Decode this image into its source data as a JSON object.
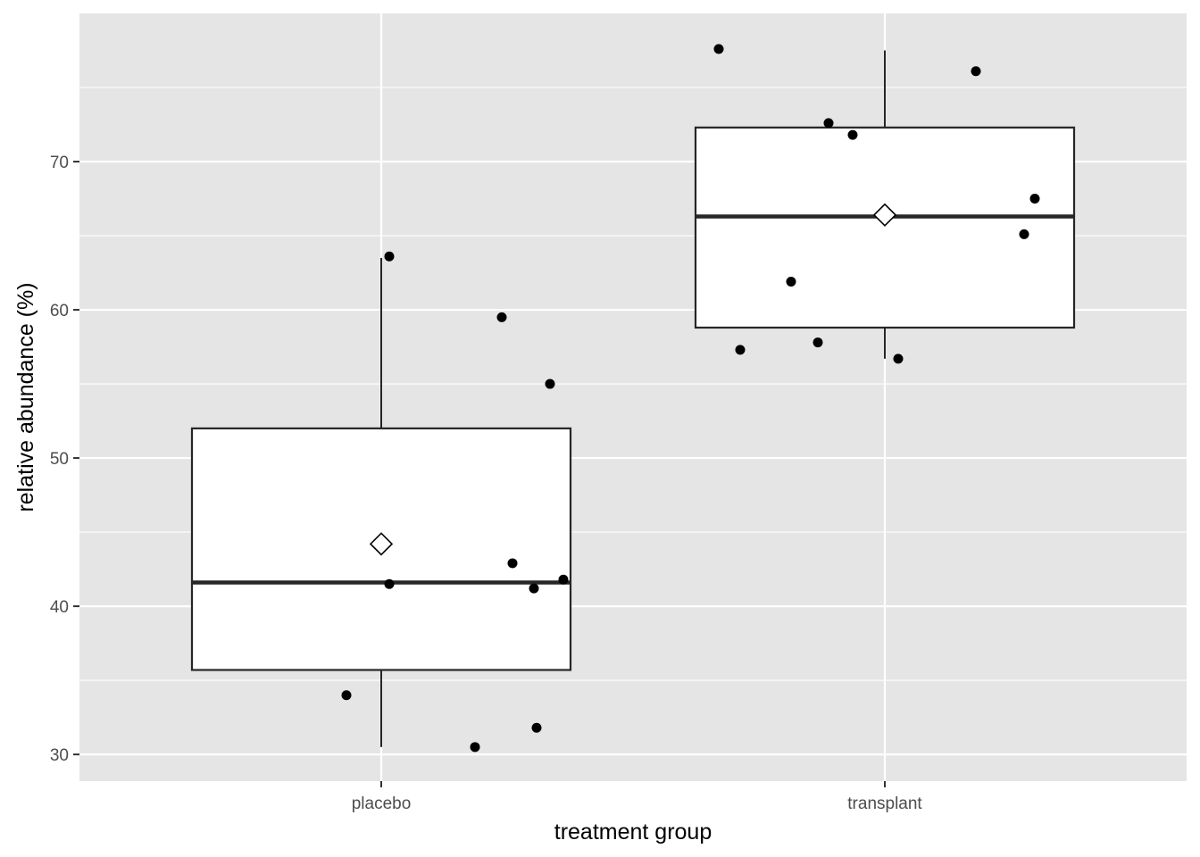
{
  "chart_data": {
    "type": "boxplot",
    "xlabel": "treatment group",
    "ylabel": "relative abundance (%)",
    "ylim": [
      28.2,
      80.0
    ],
    "y_ticks": [
      30,
      40,
      50,
      60,
      70
    ],
    "categories": [
      "placebo",
      "transplant"
    ],
    "grid": true,
    "legend": "none",
    "groups": [
      {
        "category": "placebo",
        "whisker_low": 30.5,
        "q1": 35.7,
        "median": 41.6,
        "q3": 52.0,
        "whisker_high": 63.5,
        "mean": 44.2,
        "points": [
          {
            "x_offset": 0.03,
            "y": 63.6
          },
          {
            "x_offset": 0.45,
            "y": 59.5
          },
          {
            "x_offset": 0.63,
            "y": 55.0
          },
          {
            "x_offset": 0.49,
            "y": 42.9
          },
          {
            "x_offset": 0.68,
            "y": 41.8
          },
          {
            "x_offset": 0.03,
            "y": 41.5
          },
          {
            "x_offset": 0.57,
            "y": 41.2
          },
          {
            "x_offset": -0.13,
            "y": 34.0
          },
          {
            "x_offset": 0.58,
            "y": 31.8
          },
          {
            "x_offset": 0.35,
            "y": 30.5
          }
        ]
      },
      {
        "category": "transplant",
        "whisker_low": 56.7,
        "q1": 58.8,
        "median": 66.3,
        "q3": 72.3,
        "whisker_high": 77.5,
        "mean": 66.4,
        "points": [
          {
            "x_offset": -0.62,
            "y": 77.6
          },
          {
            "x_offset": 0.34,
            "y": 76.1
          },
          {
            "x_offset": -0.21,
            "y": 72.6
          },
          {
            "x_offset": -0.12,
            "y": 71.8
          },
          {
            "x_offset": 0.56,
            "y": 67.5
          },
          {
            "x_offset": 0.52,
            "y": 65.1
          },
          {
            "x_offset": -0.35,
            "y": 61.9
          },
          {
            "x_offset": -0.25,
            "y": 57.8
          },
          {
            "x_offset": -0.54,
            "y": 57.3
          },
          {
            "x_offset": 0.05,
            "y": 56.7
          }
        ]
      }
    ],
    "colors": {
      "panel_background": "#e5e5e5",
      "grid": "#ffffff",
      "box_fill": "#ffffff",
      "box_line": "#262626",
      "point": "#000000"
    }
  }
}
